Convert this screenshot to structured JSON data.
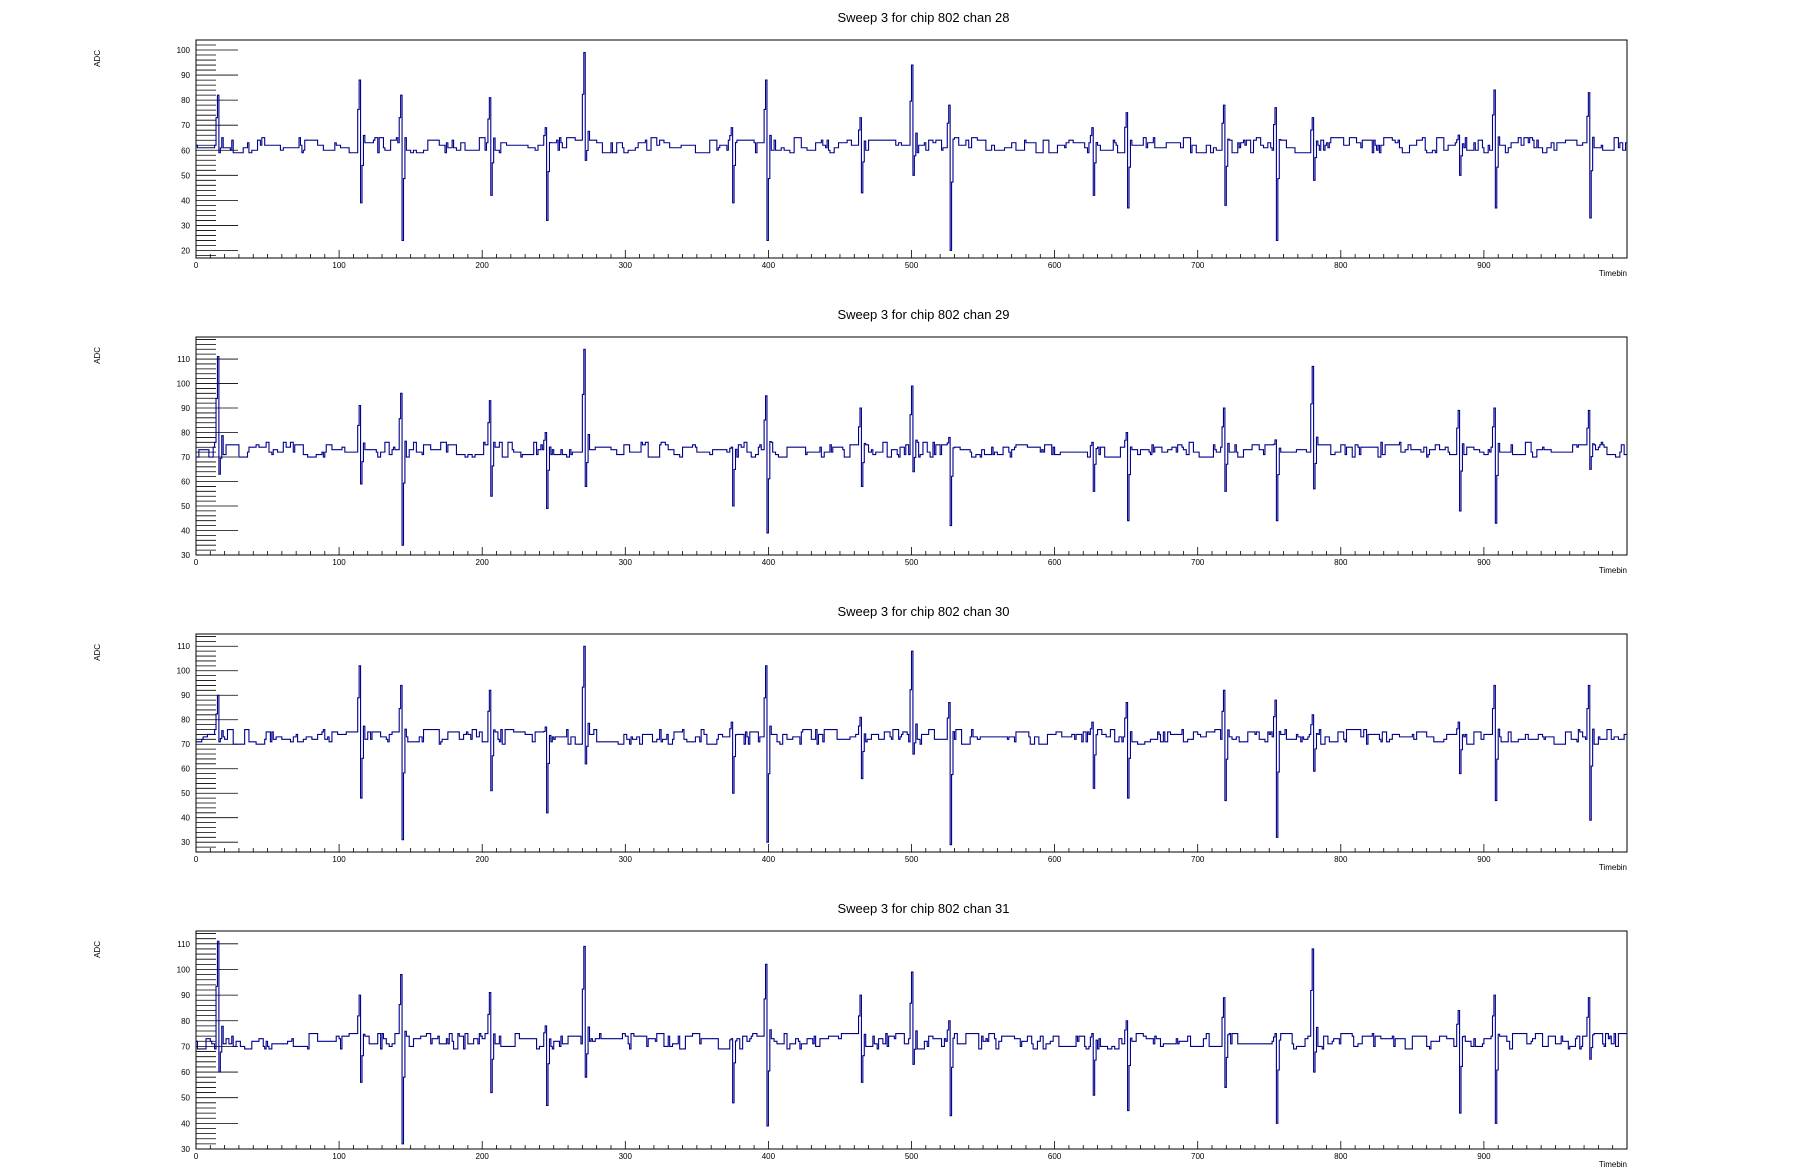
{
  "style": {
    "line_color": "#00008b",
    "axis_color": "#000000",
    "background": "#ffffff"
  },
  "chart_data": [
    {
      "type": "line",
      "title": "Sweep 3 for chip 802 chan 28",
      "xlabel": "Timebin",
      "ylabel": "ADC",
      "xlim": [
        0,
        1000
      ],
      "ylim": [
        17,
        104
      ],
      "xticks": [
        0,
        100,
        200,
        300,
        400,
        500,
        600,
        700,
        800,
        900
      ],
      "yticks": [
        20,
        30,
        40,
        50,
        60,
        70,
        80,
        90,
        100
      ],
      "grid": false,
      "baseline": 62,
      "noise": 2,
      "seed": 28,
      "spikes": [
        {
          "x": 15,
          "hi": 82,
          "lo": 59
        },
        {
          "x": 114,
          "hi": 88,
          "lo": 39
        },
        {
          "x": 143,
          "hi": 82,
          "lo": 24
        },
        {
          "x": 205,
          "hi": 81,
          "lo": 42
        },
        {
          "x": 244,
          "hi": 69,
          "lo": 32
        },
        {
          "x": 271,
          "hi": 99,
          "lo": 56
        },
        {
          "x": 374,
          "hi": 69,
          "lo": 39
        },
        {
          "x": 398,
          "hi": 88,
          "lo": 24
        },
        {
          "x": 464,
          "hi": 73,
          "lo": 43
        },
        {
          "x": 500,
          "hi": 94,
          "lo": 50
        },
        {
          "x": 526,
          "hi": 78,
          "lo": 20
        },
        {
          "x": 626,
          "hi": 69,
          "lo": 42
        },
        {
          "x": 650,
          "hi": 75,
          "lo": 37
        },
        {
          "x": 718,
          "hi": 78,
          "lo": 38
        },
        {
          "x": 754,
          "hi": 77,
          "lo": 24
        },
        {
          "x": 780,
          "hi": 73,
          "lo": 48
        },
        {
          "x": 882,
          "hi": 66,
          "lo": 50
        },
        {
          "x": 907,
          "hi": 84,
          "lo": 37
        },
        {
          "x": 973,
          "hi": 83,
          "lo": 33
        }
      ]
    },
    {
      "type": "line",
      "title": "Sweep 3 for chip 802 chan 29",
      "xlabel": "Timebin",
      "ylabel": "ADC",
      "xlim": [
        0,
        1000
      ],
      "ylim": [
        30,
        119
      ],
      "xticks": [
        0,
        100,
        200,
        300,
        400,
        500,
        600,
        700,
        800,
        900
      ],
      "yticks": [
        30,
        40,
        50,
        60,
        70,
        80,
        90,
        100,
        110
      ],
      "grid": false,
      "baseline": 73,
      "noise": 2,
      "seed": 29,
      "spikes": [
        {
          "x": 15,
          "hi": 111,
          "lo": 63
        },
        {
          "x": 114,
          "hi": 91,
          "lo": 59
        },
        {
          "x": 143,
          "hi": 96,
          "lo": 34
        },
        {
          "x": 205,
          "hi": 93,
          "lo": 54
        },
        {
          "x": 244,
          "hi": 80,
          "lo": 49
        },
        {
          "x": 271,
          "hi": 114,
          "lo": 58
        },
        {
          "x": 374,
          "hi": 74,
          "lo": 50
        },
        {
          "x": 398,
          "hi": 95,
          "lo": 39
        },
        {
          "x": 464,
          "hi": 90,
          "lo": 58
        },
        {
          "x": 500,
          "hi": 99,
          "lo": 64
        },
        {
          "x": 526,
          "hi": 78,
          "lo": 42
        },
        {
          "x": 626,
          "hi": 76,
          "lo": 56
        },
        {
          "x": 650,
          "hi": 80,
          "lo": 44
        },
        {
          "x": 718,
          "hi": 90,
          "lo": 56
        },
        {
          "x": 754,
          "hi": 77,
          "lo": 44
        },
        {
          "x": 780,
          "hi": 107,
          "lo": 57
        },
        {
          "x": 882,
          "hi": 89,
          "lo": 48
        },
        {
          "x": 907,
          "hi": 90,
          "lo": 43
        },
        {
          "x": 973,
          "hi": 89,
          "lo": 65
        }
      ]
    },
    {
      "type": "line",
      "title": "Sweep 3 for chip 802 chan 30",
      "xlabel": "Timebin",
      "ylabel": "ADC",
      "xlim": [
        0,
        1000
      ],
      "ylim": [
        26,
        115
      ],
      "xticks": [
        0,
        100,
        200,
        300,
        400,
        500,
        600,
        700,
        800,
        900
      ],
      "yticks": [
        30,
        40,
        50,
        60,
        70,
        80,
        90,
        100,
        110
      ],
      "grid": false,
      "baseline": 73,
      "noise": 2,
      "seed": 30,
      "spikes": [
        {
          "x": 15,
          "hi": 90,
          "lo": 71
        },
        {
          "x": 114,
          "hi": 102,
          "lo": 48
        },
        {
          "x": 143,
          "hi": 94,
          "lo": 31
        },
        {
          "x": 205,
          "hi": 92,
          "lo": 51
        },
        {
          "x": 244,
          "hi": 77,
          "lo": 42
        },
        {
          "x": 271,
          "hi": 110,
          "lo": 62
        },
        {
          "x": 374,
          "hi": 79,
          "lo": 50
        },
        {
          "x": 398,
          "hi": 102,
          "lo": 30
        },
        {
          "x": 464,
          "hi": 81,
          "lo": 56
        },
        {
          "x": 500,
          "hi": 108,
          "lo": 66
        },
        {
          "x": 526,
          "hi": 87,
          "lo": 29
        },
        {
          "x": 626,
          "hi": 79,
          "lo": 52
        },
        {
          "x": 650,
          "hi": 87,
          "lo": 48
        },
        {
          "x": 718,
          "hi": 92,
          "lo": 47
        },
        {
          "x": 754,
          "hi": 88,
          "lo": 32
        },
        {
          "x": 780,
          "hi": 82,
          "lo": 59
        },
        {
          "x": 882,
          "hi": 79,
          "lo": 58
        },
        {
          "x": 907,
          "hi": 94,
          "lo": 47
        },
        {
          "x": 973,
          "hi": 94,
          "lo": 39
        }
      ]
    },
    {
      "type": "line",
      "title": "Sweep 3 for chip 802 chan 31",
      "xlabel": "Timebin",
      "ylabel": "ADC",
      "xlim": [
        0,
        1000
      ],
      "ylim": [
        30,
        115
      ],
      "xticks": [
        0,
        100,
        200,
        300,
        400,
        500,
        600,
        700,
        800,
        900
      ],
      "yticks": [
        30,
        40,
        50,
        60,
        70,
        80,
        90,
        100,
        110
      ],
      "grid": false,
      "baseline": 72,
      "noise": 2,
      "seed": 31,
      "spikes": [
        {
          "x": 15,
          "hi": 111,
          "lo": 60
        },
        {
          "x": 114,
          "hi": 90,
          "lo": 56
        },
        {
          "x": 143,
          "hi": 98,
          "lo": 32
        },
        {
          "x": 205,
          "hi": 91,
          "lo": 52
        },
        {
          "x": 244,
          "hi": 78,
          "lo": 47
        },
        {
          "x": 271,
          "hi": 109,
          "lo": 58
        },
        {
          "x": 374,
          "hi": 73,
          "lo": 48
        },
        {
          "x": 398,
          "hi": 102,
          "lo": 39
        },
        {
          "x": 464,
          "hi": 90,
          "lo": 56
        },
        {
          "x": 500,
          "hi": 99,
          "lo": 63
        },
        {
          "x": 526,
          "hi": 80,
          "lo": 43
        },
        {
          "x": 626,
          "hi": 75,
          "lo": 51
        },
        {
          "x": 650,
          "hi": 80,
          "lo": 45
        },
        {
          "x": 718,
          "hi": 89,
          "lo": 54
        },
        {
          "x": 754,
          "hi": 75,
          "lo": 40
        },
        {
          "x": 780,
          "hi": 108,
          "lo": 60
        },
        {
          "x": 882,
          "hi": 84,
          "lo": 44
        },
        {
          "x": 907,
          "hi": 90,
          "lo": 40
        },
        {
          "x": 973,
          "hi": 89,
          "lo": 65
        }
      ]
    }
  ]
}
